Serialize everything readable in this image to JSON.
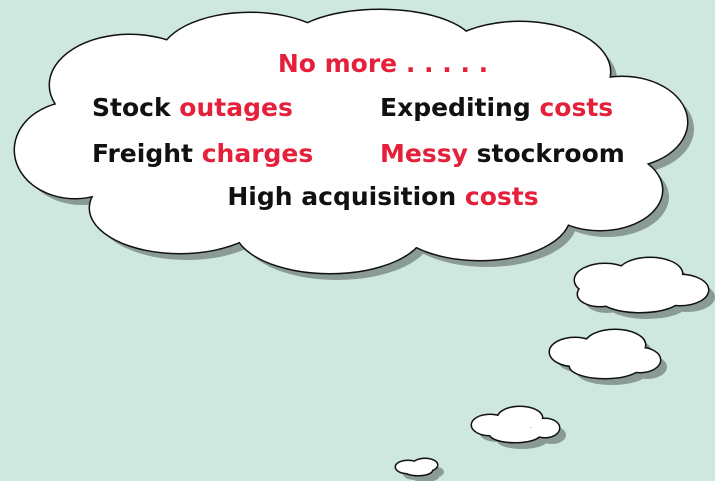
{
  "heading": "No more . . . . .",
  "items": [
    [
      "Stock",
      "outages"
    ],
    [
      "Expediting",
      "costs"
    ],
    [
      "Freight",
      "charges"
    ],
    [
      "Messy",
      "stockroom"
    ],
    [
      "High acquisition",
      "costs"
    ]
  ]
}
